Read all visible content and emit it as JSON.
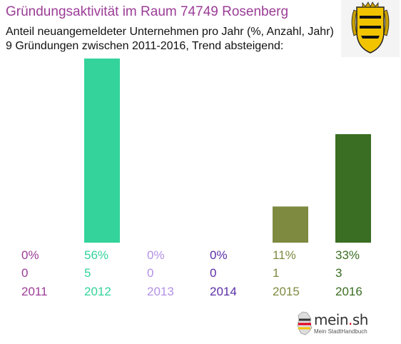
{
  "header": {
    "title": "Gründungsaktivität im Raum 74749 Rosenberg",
    "subtitle_line1": "Anteil neuangemeldeter Unternehmen pro Jahr (%, Anzahl, Jahr)",
    "subtitle_line2": "9 Gründungen zwischen 2011-2016, Trend absteigend:"
  },
  "crest": {
    "icon": "baden-wuerttemberg-coat-of-arms-icon"
  },
  "logo": {
    "main": "mein",
    "dot": ".",
    "suffix": "sh",
    "tagline": "Mein StadtHandbuch",
    "icon": "germany-map-icon"
  },
  "chart_data": {
    "type": "bar",
    "categories": [
      "2011",
      "2012",
      "2013",
      "2014",
      "2015",
      "2016"
    ],
    "series": [
      {
        "values": [
          0,
          56,
          0,
          0,
          11,
          33
        ]
      }
    ],
    "counts": [
      0,
      5,
      0,
      0,
      1,
      3
    ],
    "percent_labels": [
      "0%",
      "56%",
      "0%",
      "0%",
      "11%",
      "33%"
    ],
    "count_labels": [
      "0",
      "5",
      "0",
      "0",
      "1",
      "3"
    ],
    "colors": [
      "#9b3d96",
      "#33d39b",
      "#b391e6",
      "#5a2ea6",
      "#7e8a40",
      "#3a6e22"
    ],
    "ylim": [
      0,
      56
    ],
    "grid": false,
    "legend": "none"
  }
}
